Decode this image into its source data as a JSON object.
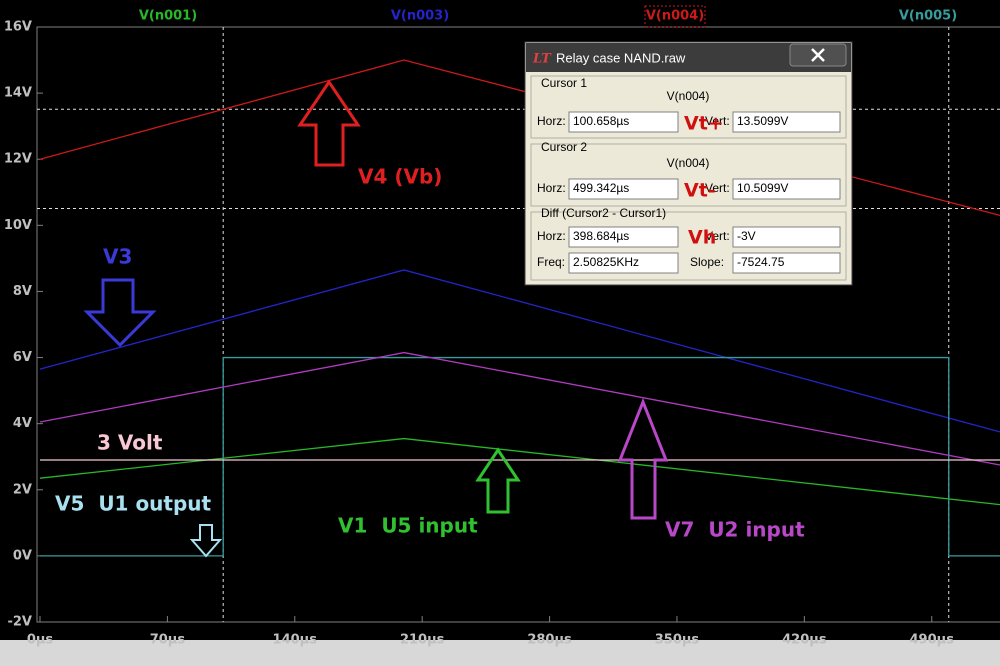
{
  "chart_data": {
    "type": "line",
    "xlim": [
      0,
      527.5
    ],
    "ylim": [
      -2,
      16
    ],
    "xticks": [
      {
        "value": 0,
        "label": "0µs"
      },
      {
        "value": 70,
        "label": "70µs"
      },
      {
        "value": 140,
        "label": "140µs"
      },
      {
        "value": 210,
        "label": "210µs"
      },
      {
        "value": 280,
        "label": "280µs"
      },
      {
        "value": 350,
        "label": "350µs"
      },
      {
        "value": 420,
        "label": "420µs"
      },
      {
        "value": 490,
        "label": "490µs"
      }
    ],
    "yticks": [
      {
        "value": -2,
        "label": "-2V"
      },
      {
        "value": 0,
        "label": "0V"
      },
      {
        "value": 2,
        "label": "2V"
      },
      {
        "value": 4,
        "label": "4V"
      },
      {
        "value": 6,
        "label": "6V"
      },
      {
        "value": 8,
        "label": "8V"
      },
      {
        "value": 10,
        "label": "10V"
      },
      {
        "value": 12,
        "label": "12V"
      },
      {
        "value": 14,
        "label": "14V"
      },
      {
        "value": 16,
        "label": "16V"
      }
    ],
    "series": [
      {
        "name": "V(n001)",
        "color": "#27b827",
        "x": [
          0,
          200,
          527.5
        ],
        "values": [
          2.35,
          3.55,
          1.55
        ]
      },
      {
        "name": "V(n003)",
        "color": "#2424cc",
        "x": [
          0,
          200,
          527.5
        ],
        "values": [
          5.65,
          8.65,
          3.75
        ]
      },
      {
        "name": "V(n004)",
        "color": "#cc1a1a",
        "x": [
          0,
          200,
          527.5
        ],
        "values": [
          12,
          15,
          10.3
        ]
      },
      {
        "name": "V(n005)",
        "color": "#389c9c",
        "x": [
          0,
          100.658,
          100.658,
          499.342,
          499.342,
          527.5
        ],
        "values": [
          0,
          0,
          6,
          6,
          0,
          0
        ]
      },
      {
        "color": "#b03cc0",
        "x": [
          0,
          200,
          527.5
        ],
        "values": [
          4.05,
          6.15,
          2.75
        ]
      },
      {
        "color": "#f4c8d0",
        "x": [
          0,
          527.5
        ],
        "values": [
          2.9,
          2.9
        ]
      }
    ],
    "cursors": {
      "x": [
        100.658,
        499.342
      ],
      "y": [
        13.5099,
        10.5099
      ]
    },
    "annotations": [
      "V4 (Vb)",
      "V3",
      "3 Volt",
      "V5  U1 output",
      "V1  U5 input",
      "V7  U2 input"
    ]
  },
  "dialog": {
    "title": "Relay case NAND.raw",
    "cursor1": {
      "label": "Cursor 1",
      "trace": "V(n004)",
      "horz_label": "Horz:",
      "horz": "100.658µs",
      "vert_label": "Vert:",
      "vert": "13.5099V"
    },
    "cursor2": {
      "label": "Cursor 2",
      "trace": "V(n004)",
      "horz_label": "Horz:",
      "horz": "499.342µs",
      "vert_label": "Vert:",
      "vert": "10.5099V"
    },
    "diff": {
      "label": "Diff (Cursor2 - Cursor1)",
      "horz_label": "Horz:",
      "horz": "398.684µs",
      "vert_label": "Vert:",
      "vert": "-3V",
      "freq_label": "Freq:",
      "freq": "2.50825KHz",
      "slope_label": "Slope:",
      "slope": "-7524.75"
    },
    "overlays": [
      "Vt+",
      "Vt-",
      "Vh"
    ]
  }
}
